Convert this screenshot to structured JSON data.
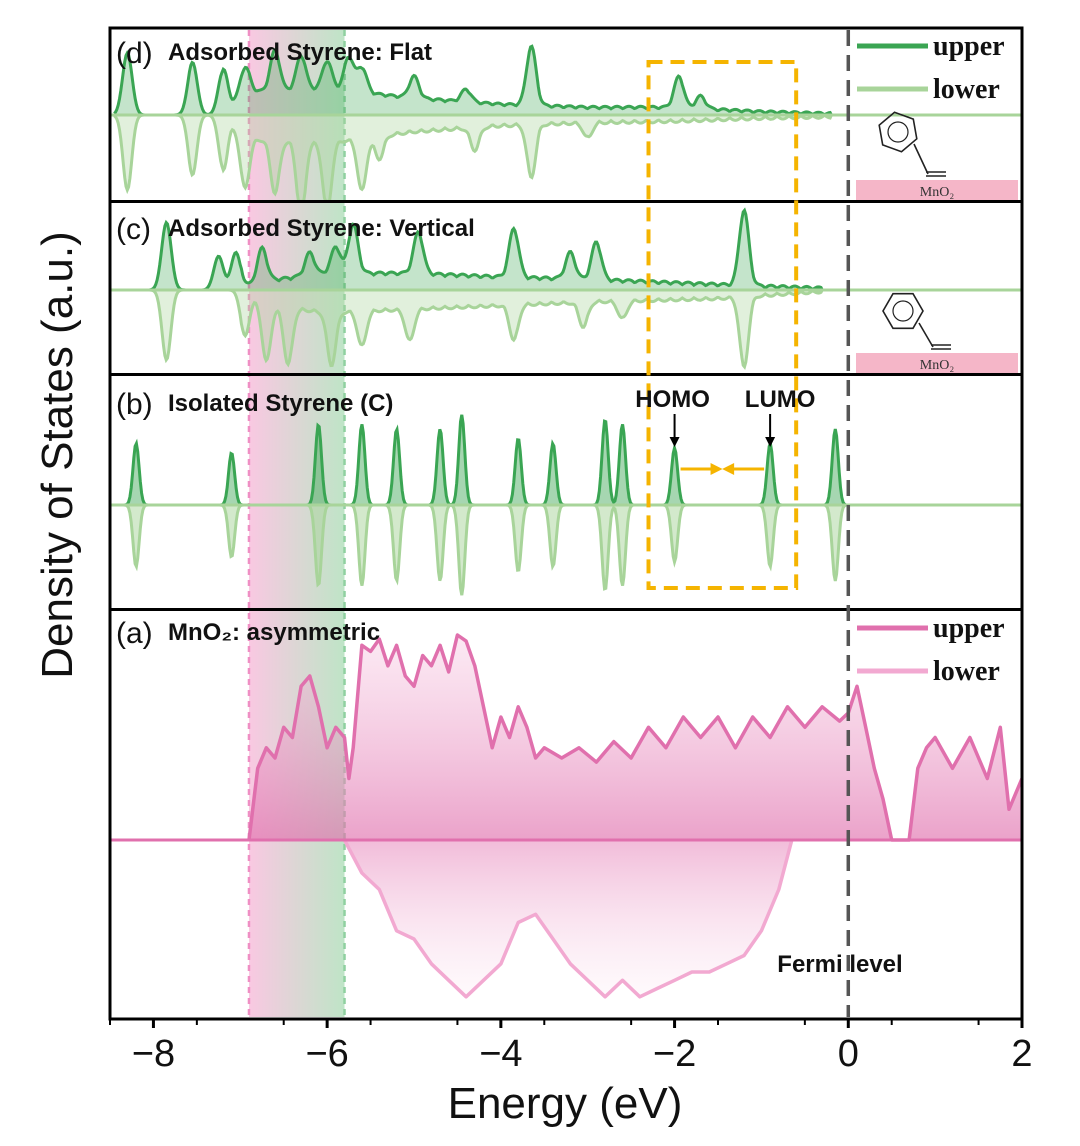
{
  "chart_data": {
    "type": "area",
    "xlabel": "Energy (eV)",
    "ylabel": "Density of States (a.u.)",
    "xlim": [
      -8.5,
      2
    ],
    "xticks": [
      {
        "value": -8,
        "label": "−8"
      },
      {
        "value": -6,
        "label": "−6"
      },
      {
        "value": -4,
        "label": "−4"
      },
      {
        "value": -2,
        "label": "−2"
      },
      {
        "value": 0,
        "label": "0"
      },
      {
        "value": 2,
        "label": "2"
      }
    ],
    "colors": {
      "green_upper": "#3aa553",
      "green_lower": "#a8d49a",
      "pink_upper": "#e070ad",
      "pink_lower": "#f2a9d1",
      "highlight_box": "#f5b400",
      "fermi_line": "#555555",
      "arrow": "#f5b400"
    },
    "fermi_level": {
      "x": 0,
      "label": "Fermi level"
    },
    "highlight_band": {
      "x": [
        -6.9,
        -5.8
      ]
    },
    "highlight_box": {
      "x": [
        -2.3,
        -0.6
      ]
    },
    "panels": [
      {
        "id": "d",
        "letter": "(d)",
        "title": "Adsorbed Styrene: Flat",
        "legend": [
          "upper",
          "lower"
        ],
        "surface_label": "MnO₂",
        "upper_peaks": [
          {
            "x": -8.3,
            "h": 1.0
          },
          {
            "x": -7.55,
            "h": 0.85
          },
          {
            "x": -7.2,
            "h": 0.7
          },
          {
            "x": -6.95,
            "h": 0.45
          },
          {
            "x": -6.6,
            "h": 0.65
          },
          {
            "x": -6.3,
            "h": 0.55
          },
          {
            "x": -6.0,
            "h": 0.45
          },
          {
            "x": -5.75,
            "h": 0.55
          },
          {
            "x": -5.6,
            "h": 0.4
          },
          {
            "x": -5.0,
            "h": 0.35
          },
          {
            "x": -4.4,
            "h": 0.2
          },
          {
            "x": -3.65,
            "h": 0.95
          },
          {
            "x": -1.95,
            "h": 0.5
          },
          {
            "x": -1.7,
            "h": 0.2
          }
        ],
        "lower_peaks": [
          {
            "x": -8.3,
            "h": 1.0
          },
          {
            "x": -7.55,
            "h": 0.8
          },
          {
            "x": -7.2,
            "h": 0.7
          },
          {
            "x": -6.95,
            "h": 0.7
          },
          {
            "x": -6.6,
            "h": 0.7
          },
          {
            "x": -6.3,
            "h": 1.0
          },
          {
            "x": -6.0,
            "h": 0.9
          },
          {
            "x": -5.6,
            "h": 0.7
          },
          {
            "x": -5.4,
            "h": 0.3
          },
          {
            "x": -4.3,
            "h": 0.3
          },
          {
            "x": -3.65,
            "h": 0.7
          },
          {
            "x": -3.0,
            "h": 0.2
          }
        ],
        "upper_base": [
          {
            "x": -7.2,
            "h": 0.0
          },
          {
            "x": -6.9,
            "h": 0.35
          },
          {
            "x": -6.0,
            "h": 0.4
          },
          {
            "x": -5.0,
            "h": 0.25
          },
          {
            "x": -4.0,
            "h": 0.15
          },
          {
            "x": -3.0,
            "h": 0.1
          },
          {
            "x": -2.0,
            "h": 0.1
          },
          {
            "x": -1.0,
            "h": 0.03
          },
          {
            "x": -0.2,
            "h": 0.0
          }
        ],
        "lower_base": [
          {
            "x": -7.2,
            "h": 0.0
          },
          {
            "x": -6.9,
            "h": 0.3
          },
          {
            "x": -6.0,
            "h": 0.35
          },
          {
            "x": -5.0,
            "h": 0.2
          },
          {
            "x": -4.0,
            "h": 0.12
          },
          {
            "x": -3.0,
            "h": 0.08
          },
          {
            "x": -2.0,
            "h": 0.06
          },
          {
            "x": -1.0,
            "h": 0.02
          },
          {
            "x": -0.2,
            "h": 0.0
          }
        ]
      },
      {
        "id": "c",
        "letter": "(c)",
        "title": "Adsorbed Styrene: Vertical",
        "surface_label": "MnO₂",
        "upper_peaks": [
          {
            "x": -7.85,
            "h": 0.9
          },
          {
            "x": -7.25,
            "h": 0.45
          },
          {
            "x": -7.05,
            "h": 0.5
          },
          {
            "x": -6.75,
            "h": 0.45
          },
          {
            "x": -6.2,
            "h": 0.3
          },
          {
            "x": -5.9,
            "h": 0.35
          },
          {
            "x": -5.7,
            "h": 0.65
          },
          {
            "x": -4.95,
            "h": 0.55
          },
          {
            "x": -3.85,
            "h": 0.65
          },
          {
            "x": -3.2,
            "h": 0.35
          },
          {
            "x": -2.9,
            "h": 0.5
          },
          {
            "x": -1.2,
            "h": 1.0
          }
        ],
        "lower_peaks": [
          {
            "x": -7.85,
            "h": 1.0
          },
          {
            "x": -6.95,
            "h": 0.6
          },
          {
            "x": -6.7,
            "h": 0.8
          },
          {
            "x": -6.45,
            "h": 0.8
          },
          {
            "x": -5.95,
            "h": 0.75
          },
          {
            "x": -5.6,
            "h": 0.5
          },
          {
            "x": -5.05,
            "h": 0.45
          },
          {
            "x": -3.85,
            "h": 0.5
          },
          {
            "x": -3.05,
            "h": 0.35
          },
          {
            "x": -2.6,
            "h": 0.25
          },
          {
            "x": -1.2,
            "h": 1.0
          }
        ],
        "upper_base": [
          {
            "x": -7.0,
            "h": 0.0
          },
          {
            "x": -6.7,
            "h": 0.1
          },
          {
            "x": -6.0,
            "h": 0.2
          },
          {
            "x": -5.0,
            "h": 0.2
          },
          {
            "x": -4.0,
            "h": 0.15
          },
          {
            "x": -3.0,
            "h": 0.12
          },
          {
            "x": -1.5,
            "h": 0.05
          },
          {
            "x": -0.3,
            "h": 0.0
          }
        ],
        "lower_base": [
          {
            "x": -7.0,
            "h": 0.0
          },
          {
            "x": -6.7,
            "h": 0.2
          },
          {
            "x": -6.0,
            "h": 0.3
          },
          {
            "x": -5.0,
            "h": 0.25
          },
          {
            "x": -4.0,
            "h": 0.2
          },
          {
            "x": -3.0,
            "h": 0.15
          },
          {
            "x": -1.5,
            "h": 0.1
          },
          {
            "x": -0.3,
            "h": 0.0
          }
        ]
      },
      {
        "id": "b",
        "letter": "(b)",
        "title": "Isolated Styrene (C)",
        "homo_label": "HOMO",
        "lumo_label": "LUMO",
        "homo_x": -2.0,
        "lumo_x": -0.9,
        "peaks": [
          {
            "x": -8.2,
            "h": 0.65
          },
          {
            "x": -7.1,
            "h": 0.55
          },
          {
            "x": -6.1,
            "h": 0.85
          },
          {
            "x": -5.6,
            "h": 0.85
          },
          {
            "x": -5.2,
            "h": 0.8
          },
          {
            "x": -4.7,
            "h": 0.8
          },
          {
            "x": -4.45,
            "h": 0.95
          },
          {
            "x": -3.8,
            "h": 0.7
          },
          {
            "x": -3.4,
            "h": 0.65
          },
          {
            "x": -2.8,
            "h": 0.9
          },
          {
            "x": -2.6,
            "h": 0.85
          },
          {
            "x": -2.0,
            "h": 0.6
          },
          {
            "x": -0.9,
            "h": 0.65
          },
          {
            "x": -0.15,
            "h": 0.8
          }
        ]
      },
      {
        "id": "a",
        "letter": "(a)",
        "title": "MnO₂: asymmetric",
        "legend": [
          "upper",
          "lower"
        ],
        "upper_curve": [
          {
            "x": -6.9,
            "y": 0.0
          },
          {
            "x": -6.8,
            "y": 0.35
          },
          {
            "x": -6.7,
            "y": 0.45
          },
          {
            "x": -6.6,
            "y": 0.4
          },
          {
            "x": -6.5,
            "y": 0.55
          },
          {
            "x": -6.4,
            "y": 0.5
          },
          {
            "x": -6.3,
            "y": 0.75
          },
          {
            "x": -6.2,
            "y": 0.8
          },
          {
            "x": -6.1,
            "y": 0.65
          },
          {
            "x": -6.0,
            "y": 0.45
          },
          {
            "x": -5.9,
            "y": 0.55
          },
          {
            "x": -5.8,
            "y": 0.5
          },
          {
            "x": -5.75,
            "y": 0.3
          },
          {
            "x": -5.7,
            "y": 0.45
          },
          {
            "x": -5.6,
            "y": 0.95
          },
          {
            "x": -5.5,
            "y": 0.92
          },
          {
            "x": -5.4,
            "y": 0.98
          },
          {
            "x": -5.3,
            "y": 0.85
          },
          {
            "x": -5.2,
            "y": 0.95
          },
          {
            "x": -5.1,
            "y": 0.8
          },
          {
            "x": -5.0,
            "y": 0.75
          },
          {
            "x": -4.9,
            "y": 0.9
          },
          {
            "x": -4.8,
            "y": 0.85
          },
          {
            "x": -4.7,
            "y": 0.95
          },
          {
            "x": -4.6,
            "y": 0.82
          },
          {
            "x": -4.5,
            "y": 1.0
          },
          {
            "x": -4.4,
            "y": 0.97
          },
          {
            "x": -4.3,
            "y": 0.85
          },
          {
            "x": -4.2,
            "y": 0.65
          },
          {
            "x": -4.1,
            "y": 0.45
          },
          {
            "x": -4.0,
            "y": 0.6
          },
          {
            "x": -3.9,
            "y": 0.5
          },
          {
            "x": -3.8,
            "y": 0.65
          },
          {
            "x": -3.7,
            "y": 0.55
          },
          {
            "x": -3.6,
            "y": 0.4
          },
          {
            "x": -3.5,
            "y": 0.45
          },
          {
            "x": -3.3,
            "y": 0.4
          },
          {
            "x": -3.1,
            "y": 0.45
          },
          {
            "x": -2.9,
            "y": 0.38
          },
          {
            "x": -2.7,
            "y": 0.48
          },
          {
            "x": -2.5,
            "y": 0.4
          },
          {
            "x": -2.3,
            "y": 0.55
          },
          {
            "x": -2.1,
            "y": 0.45
          },
          {
            "x": -1.9,
            "y": 0.6
          },
          {
            "x": -1.7,
            "y": 0.5
          },
          {
            "x": -1.5,
            "y": 0.6
          },
          {
            "x": -1.3,
            "y": 0.45
          },
          {
            "x": -1.1,
            "y": 0.6
          },
          {
            "x": -0.9,
            "y": 0.5
          },
          {
            "x": -0.7,
            "y": 0.65
          },
          {
            "x": -0.5,
            "y": 0.55
          },
          {
            "x": -0.3,
            "y": 0.65
          },
          {
            "x": -0.1,
            "y": 0.58
          },
          {
            "x": 0.0,
            "y": 0.62
          },
          {
            "x": 0.1,
            "y": 0.75
          },
          {
            "x": 0.2,
            "y": 0.55
          },
          {
            "x": 0.3,
            "y": 0.35
          },
          {
            "x": 0.4,
            "y": 0.2
          },
          {
            "x": 0.5,
            "y": 0.0
          },
          {
            "x": 0.7,
            "y": 0.0
          },
          {
            "x": 0.8,
            "y": 0.35
          },
          {
            "x": 0.9,
            "y": 0.45
          },
          {
            "x": 1.0,
            "y": 0.5
          },
          {
            "x": 1.2,
            "y": 0.35
          },
          {
            "x": 1.4,
            "y": 0.5
          },
          {
            "x": 1.6,
            "y": 0.3
          },
          {
            "x": 1.75,
            "y": 0.55
          },
          {
            "x": 1.85,
            "y": 0.15
          },
          {
            "x": 2.0,
            "y": 0.3
          }
        ],
        "lower_curve": [
          {
            "x": -5.8,
            "y": 0.0
          },
          {
            "x": -5.6,
            "y": 0.2
          },
          {
            "x": -5.4,
            "y": 0.3
          },
          {
            "x": -5.2,
            "y": 0.55
          },
          {
            "x": -5.0,
            "y": 0.6
          },
          {
            "x": -4.8,
            "y": 0.75
          },
          {
            "x": -4.6,
            "y": 0.85
          },
          {
            "x": -4.4,
            "y": 0.95
          },
          {
            "x": -4.2,
            "y": 0.85
          },
          {
            "x": -4.0,
            "y": 0.75
          },
          {
            "x": -3.8,
            "y": 0.5
          },
          {
            "x": -3.6,
            "y": 0.45
          },
          {
            "x": -3.4,
            "y": 0.6
          },
          {
            "x": -3.2,
            "y": 0.75
          },
          {
            "x": -3.0,
            "y": 0.85
          },
          {
            "x": -2.8,
            "y": 0.95
          },
          {
            "x": -2.6,
            "y": 0.85
          },
          {
            "x": -2.4,
            "y": 0.95
          },
          {
            "x": -2.2,
            "y": 0.9
          },
          {
            "x": -2.0,
            "y": 0.85
          },
          {
            "x": -1.8,
            "y": 0.8
          },
          {
            "x": -1.6,
            "y": 0.8
          },
          {
            "x": -1.4,
            "y": 0.75
          },
          {
            "x": -1.2,
            "y": 0.7
          },
          {
            "x": -1.0,
            "y": 0.55
          },
          {
            "x": -0.8,
            "y": 0.3
          },
          {
            "x": -0.65,
            "y": 0.0
          }
        ]
      }
    ]
  }
}
